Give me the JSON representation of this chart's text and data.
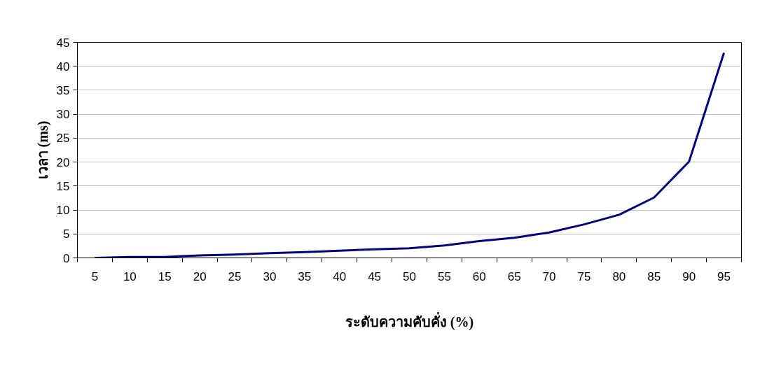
{
  "chart_data": {
    "type": "line",
    "xlabel": "ระดับความคับคั่ง (%)",
    "ylabel": "เวลา (ms)",
    "categories": [
      "5",
      "10",
      "15",
      "20",
      "25",
      "30",
      "35",
      "40",
      "45",
      "50",
      "55",
      "60",
      "65",
      "70",
      "75",
      "80",
      "85",
      "90",
      "95"
    ],
    "series": [
      {
        "color": "#000080",
        "values": [
          0,
          0.2,
          0.2,
          0.5,
          0.7,
          1.0,
          1.2,
          1.5,
          1.8,
          2.0,
          2.6,
          3.5,
          4.2,
          5.3,
          7.0,
          9.0,
          12.6,
          20.1,
          42.8
        ]
      }
    ],
    "ylim": [
      0,
      45
    ],
    "yticks": [
      0,
      5,
      10,
      15,
      20,
      25,
      30,
      35,
      40,
      45
    ],
    "grid": "y",
    "marker": "none",
    "line_style": "solid"
  }
}
